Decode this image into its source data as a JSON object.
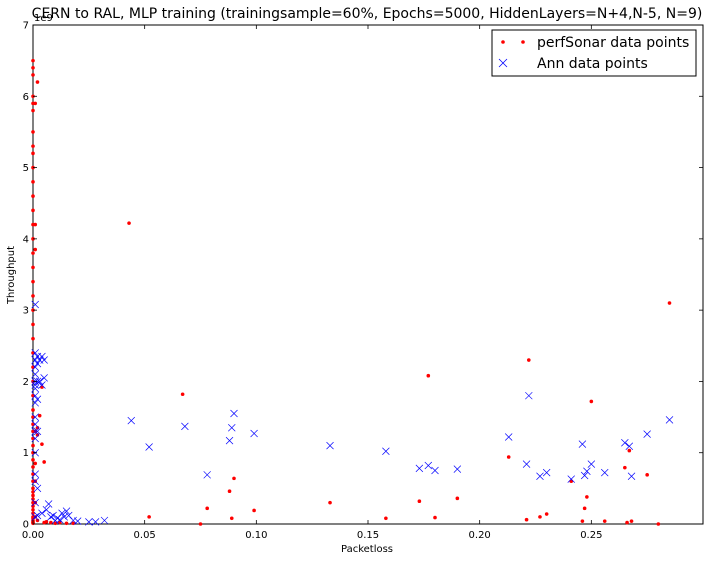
{
  "chart_data": {
    "type": "scatter",
    "title": "CERN to RAL, MLP training (trainingsample=60%, Epochs=5000, HiddenLayers=N+4,N-5, N=9)",
    "xlabel": "Packetloss",
    "ylabel": "Throughput",
    "y_offset_text": "1e9",
    "xlim": [
      0,
      0.3
    ],
    "ylim": [
      0,
      7
    ],
    "x_ticks": [
      0.0,
      0.05,
      0.1,
      0.15,
      0.2,
      0.25
    ],
    "x_tick_labels": [
      "0.00",
      "0.05",
      "0.10",
      "0.15",
      "0.20",
      "0.25"
    ],
    "y_ticks": [
      0,
      1,
      2,
      3,
      4,
      5,
      6,
      7
    ],
    "y_tick_labels": [
      "0",
      "1",
      "2",
      "3",
      "4",
      "5",
      "6",
      "7"
    ],
    "grid": false,
    "legend_position": "upper-right",
    "series": [
      {
        "name": "perfSonar data points",
        "marker": "dot",
        "color": "#ff0000",
        "x": [
          0.0,
          0.0,
          0.0,
          0.0,
          0.0,
          0.0,
          0.0,
          0.0,
          0.0,
          0.0,
          0.0,
          0.0,
          0.0,
          0.0,
          0.0,
          0.0,
          0.0,
          0.0,
          0.0,
          0.0,
          0.0,
          0.0,
          0.0,
          0.0,
          0.0,
          0.0,
          0.0,
          0.0,
          0.0,
          0.0,
          0.0,
          0.0,
          0.0,
          0.0,
          0.0,
          0.0,
          0.0,
          0.0,
          0.0,
          0.0,
          0.0,
          0.0,
          0.0,
          0.0,
          0.0,
          0.0,
          0.0,
          0.0,
          0.0,
          0.0,
          0.0,
          0.001,
          0.001,
          0.001,
          0.001,
          0.001,
          0.001,
          0.001,
          0.001,
          0.002,
          0.002,
          0.002,
          0.003,
          0.004,
          0.004,
          0.005,
          0.005,
          0.002,
          0.006,
          0.008,
          0.01,
          0.012,
          0.015,
          0.018,
          0.043,
          0.052,
          0.067,
          0.075,
          0.078,
          0.088,
          0.089,
          0.09,
          0.099,
          0.133,
          0.158,
          0.18,
          0.173,
          0.177,
          0.19,
          0.213,
          0.221,
          0.222,
          0.227,
          0.23,
          0.241,
          0.246,
          0.247,
          0.248,
          0.25,
          0.256,
          0.265,
          0.266,
          0.267,
          0.268,
          0.275,
          0.28,
          0.285
        ],
        "y": [
          6.5,
          6.4,
          6.3,
          6.0,
          5.9,
          5.8,
          5.5,
          5.3,
          5.2,
          5.0,
          4.8,
          4.6,
          4.4,
          4.2,
          4.0,
          3.8,
          3.6,
          3.4,
          3.2,
          3.0,
          2.8,
          2.6,
          2.4,
          2.2,
          2.0,
          1.8,
          1.6,
          1.5,
          1.4,
          1.3,
          1.2,
          1.1,
          1.0,
          0.9,
          0.8,
          0.7,
          0.6,
          0.5,
          0.45,
          0.4,
          0.35,
          0.3,
          0.25,
          0.2,
          0.15,
          0.1,
          0.08,
          0.05,
          0.03,
          0.02,
          0.01,
          5.9,
          4.2,
          3.85,
          1.3,
          0.85,
          0.6,
          0.3,
          0.1,
          6.2,
          1.35,
          1.25,
          1.52,
          1.12,
          1.92,
          0.87,
          0.02,
          0.05,
          0.03,
          0.02,
          0.01,
          0.02,
          0.01,
          0.01,
          4.22,
          0.1,
          1.82,
          0.0,
          0.22,
          0.46,
          0.08,
          0.64,
          0.19,
          0.3,
          0.08,
          0.09,
          0.32,
          2.08,
          0.36,
          0.94,
          0.06,
          2.3,
          0.1,
          0.14,
          0.6,
          0.04,
          0.22,
          0.38,
          1.72,
          0.04,
          0.79,
          0.02,
          1.03,
          0.04,
          0.69,
          0.0,
          3.1
        ]
      },
      {
        "name": "Ann data points",
        "marker": "x",
        "color": "#0000ff",
        "x": [
          0.001,
          0.001,
          0.001,
          0.001,
          0.001,
          0.001,
          0.001,
          0.001,
          0.001,
          0.001,
          0.001,
          0.001,
          0.001,
          0.001,
          0.001,
          0.001,
          0.001,
          0.001,
          0.002,
          0.002,
          0.002,
          0.002,
          0.002,
          0.002,
          0.003,
          0.003,
          0.004,
          0.004,
          0.005,
          0.005,
          0.001,
          0.002,
          0.004,
          0.006,
          0.007,
          0.008,
          0.009,
          0.01,
          0.011,
          0.012,
          0.013,
          0.014,
          0.015,
          0.016,
          0.018,
          0.02,
          0.025,
          0.028,
          0.032,
          0.044,
          0.052,
          0.068,
          0.078,
          0.088,
          0.089,
          0.09,
          0.099,
          0.133,
          0.158,
          0.173,
          0.177,
          0.18,
          0.19,
          0.213,
          0.221,
          0.222,
          0.227,
          0.23,
          0.241,
          0.246,
          0.247,
          0.248,
          0.25,
          0.256,
          0.265,
          0.267,
          0.268,
          0.275,
          0.285
        ],
        "y": [
          3.08,
          2.4,
          2.3,
          2.2,
          2.1,
          2.0,
          1.95,
          1.9,
          1.8,
          1.7,
          1.5,
          1.4,
          1.3,
          1.2,
          1.0,
          0.7,
          0.6,
          0.3,
          2.35,
          2.25,
          2.0,
          1.75,
          1.3,
          0.5,
          2.3,
          2.0,
          2.35,
          1.95,
          2.3,
          2.05,
          0.1,
          0.12,
          0.15,
          0.2,
          0.28,
          0.1,
          0.12,
          0.05,
          0.08,
          0.06,
          0.15,
          0.1,
          0.18,
          0.12,
          0.05,
          0.04,
          0.03,
          0.03,
          0.05,
          1.45,
          1.08,
          1.37,
          0.69,
          1.17,
          1.35,
          1.55,
          1.27,
          1.1,
          1.02,
          0.78,
          0.82,
          0.75,
          0.77,
          1.22,
          0.84,
          1.8,
          0.67,
          0.72,
          0.63,
          1.12,
          0.68,
          0.74,
          0.84,
          0.72,
          1.14,
          1.09,
          0.67,
          1.26,
          1.46
        ]
      }
    ]
  }
}
